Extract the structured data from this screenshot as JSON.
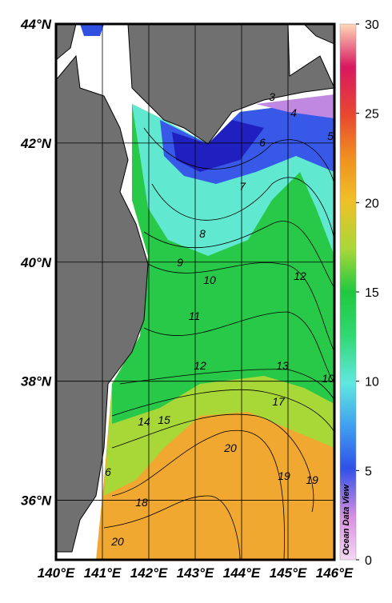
{
  "map": {
    "xticks": [
      {
        "value": 140,
        "label": "140°E"
      },
      {
        "value": 141,
        "label": "141°E"
      },
      {
        "value": 142,
        "label": "142°E"
      },
      {
        "value": 143,
        "label": "143°E"
      },
      {
        "value": 144,
        "label": "144°E"
      },
      {
        "value": 145,
        "label": "145°E"
      },
      {
        "value": 146,
        "label": "146°E"
      }
    ],
    "yticks": [
      {
        "value": 36,
        "label": "36°N"
      },
      {
        "value": 38,
        "label": "38°N"
      },
      {
        "value": 40,
        "label": "40°N"
      },
      {
        "value": 42,
        "label": "42°N"
      },
      {
        "value": 44,
        "label": "44°N"
      }
    ],
    "colorbar": {
      "range": [
        0,
        30
      ],
      "ticks": [
        0,
        5,
        10,
        15,
        20,
        25,
        30
      ]
    },
    "contour_labels": [
      3,
      4,
      5,
      6,
      7,
      8,
      9,
      10,
      12,
      11,
      12,
      13,
      10,
      17,
      14,
      15,
      20,
      19,
      19,
      6,
      18,
      20
    ],
    "credit": "Ocean Data View"
  }
}
